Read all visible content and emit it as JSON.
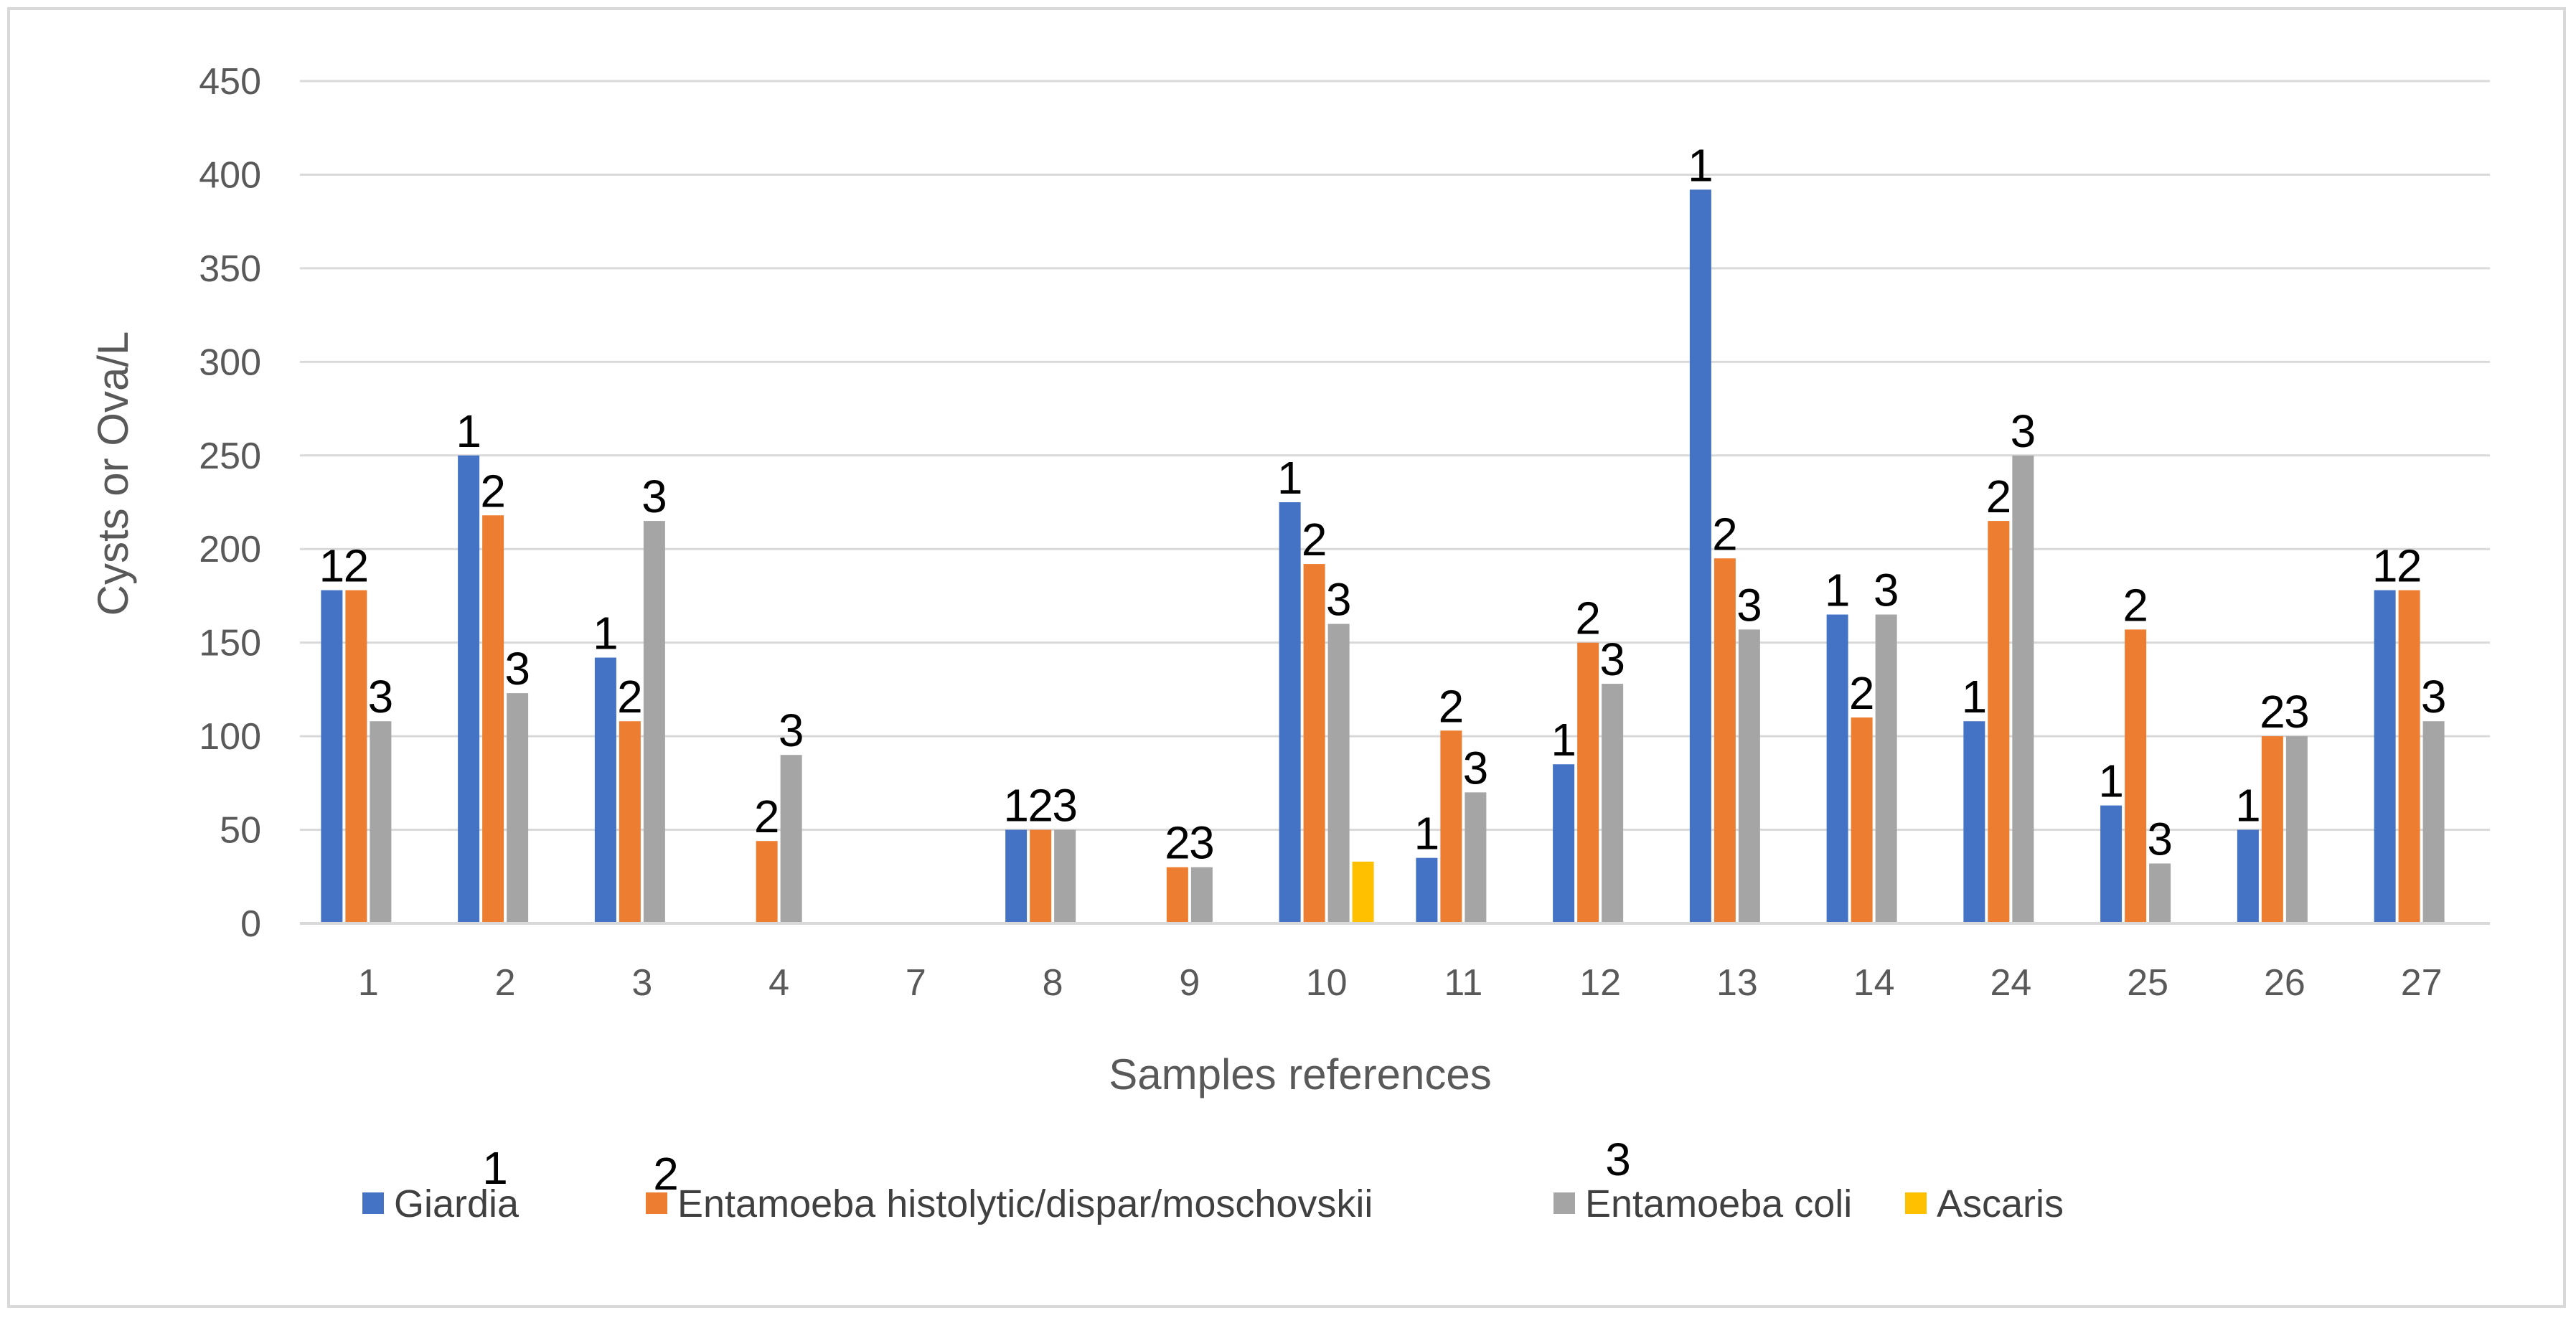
{
  "chart_data": {
    "type": "bar",
    "title": "",
    "xlabel": "Samples references",
    "ylabel": "Cysts or Ova/L",
    "ylim": [
      0,
      450
    ],
    "yticks": [
      0,
      50,
      100,
      150,
      200,
      250,
      300,
      350,
      400,
      450
    ],
    "grid": true,
    "legend_position": "bottom",
    "categories": [
      "1",
      "2",
      "3",
      "4",
      "7",
      "8",
      "9",
      "10",
      "11",
      "12",
      "13",
      "14",
      "24",
      "25",
      "26",
      "27"
    ],
    "series": [
      {
        "name": "Giardia",
        "color": "#4472C4",
        "values": [
          178,
          250,
          142,
          0,
          0,
          50,
          0,
          225,
          35,
          85,
          392,
          165,
          108,
          63,
          50,
          178
        ],
        "labels": [
          "1",
          "1",
          "1",
          "",
          "",
          "1",
          "",
          "1",
          "1",
          "1",
          "1",
          "1",
          "1",
          "1",
          "1",
          "1"
        ]
      },
      {
        "name": "Entamoeba histolytic/dispar/moschovskii",
        "color": "#ED7D31",
        "values": [
          178,
          218,
          108,
          44,
          0,
          50,
          30,
          192,
          103,
          150,
          195,
          110,
          215,
          157,
          100,
          178
        ],
        "labels": [
          "2",
          "2",
          "2",
          "2",
          "",
          "2",
          "2",
          "2",
          "2",
          "2",
          "2",
          "2",
          "2",
          "2",
          "2",
          "2"
        ]
      },
      {
        "name": "Entamoeba coli",
        "color": "#A5A5A5",
        "values": [
          108,
          123,
          215,
          90,
          0,
          50,
          30,
          160,
          70,
          128,
          157,
          165,
          250,
          32,
          100,
          108
        ],
        "labels": [
          "3",
          "3",
          "3",
          "3",
          "",
          "3",
          "3",
          "3",
          "3",
          "3",
          "3",
          "3",
          "3",
          "3",
          "3",
          "3"
        ]
      },
      {
        "name": "Ascaris",
        "color": "#FFC000",
        "values": [
          0,
          0,
          0,
          0,
          0,
          0,
          0,
          33,
          0,
          0,
          0,
          0,
          0,
          0,
          0,
          0
        ],
        "labels": [
          "",
          "",
          "",
          "",
          "",
          "",
          "",
          "",
          "",
          "",
          "",
          "",
          "",
          "",
          "",
          ""
        ]
      }
    ],
    "legend_annotations": [
      "1",
      "2",
      "3"
    ]
  }
}
